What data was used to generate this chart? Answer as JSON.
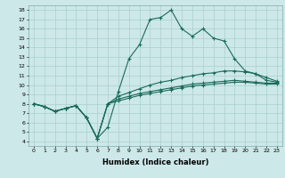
{
  "xlabel": "Humidex (Indice chaleur)",
  "bg_color": "#cde8e8",
  "line_color": "#1a6b5a",
  "grid_color": "#aacfcf",
  "xlim": [
    -0.5,
    23.5
  ],
  "ylim": [
    3.5,
    18.5
  ],
  "xticks": [
    0,
    1,
    2,
    3,
    4,
    5,
    6,
    7,
    8,
    9,
    10,
    11,
    12,
    13,
    14,
    15,
    16,
    17,
    18,
    19,
    20,
    21,
    22,
    23
  ],
  "yticks": [
    4,
    5,
    6,
    7,
    8,
    9,
    10,
    11,
    12,
    13,
    14,
    15,
    16,
    17,
    18
  ],
  "line1_x": [
    0,
    1,
    2,
    3,
    4,
    5,
    6,
    7,
    8,
    9,
    10,
    11,
    12,
    13,
    14,
    15,
    16,
    17,
    18,
    19,
    20,
    21,
    22,
    23
  ],
  "line1_y": [
    8.0,
    7.7,
    7.2,
    7.5,
    7.8,
    6.5,
    4.3,
    5.5,
    9.3,
    12.8,
    14.3,
    17.0,
    17.2,
    18.0,
    16.0,
    15.2,
    16.0,
    15.0,
    14.7,
    12.8,
    11.5,
    11.2,
    10.5,
    10.3
  ],
  "line2_x": [
    0,
    1,
    2,
    3,
    4,
    5,
    6,
    7,
    8,
    9,
    10,
    11,
    12,
    13,
    14,
    15,
    16,
    17,
    18,
    19,
    20,
    21,
    22,
    23
  ],
  "line2_y": [
    8.0,
    7.7,
    7.2,
    7.5,
    7.8,
    6.5,
    4.3,
    8.0,
    8.8,
    9.2,
    9.6,
    10.0,
    10.3,
    10.5,
    10.8,
    11.0,
    11.2,
    11.3,
    11.5,
    11.5,
    11.4,
    11.2,
    10.8,
    10.4
  ],
  "line3_x": [
    0,
    1,
    2,
    3,
    4,
    5,
    6,
    7,
    8,
    9,
    10,
    11,
    12,
    13,
    14,
    15,
    16,
    17,
    18,
    19,
    20,
    21,
    22,
    23
  ],
  "line3_y": [
    8.0,
    7.7,
    7.2,
    7.5,
    7.8,
    6.5,
    4.3,
    8.0,
    8.5,
    8.8,
    9.1,
    9.3,
    9.5,
    9.7,
    9.9,
    10.1,
    10.2,
    10.3,
    10.4,
    10.5,
    10.4,
    10.3,
    10.2,
    10.2
  ],
  "line4_x": [
    0,
    1,
    2,
    3,
    4,
    5,
    6,
    7,
    8,
    9,
    10,
    11,
    12,
    13,
    14,
    15,
    16,
    17,
    18,
    19,
    20,
    21,
    22,
    23
  ],
  "line4_y": [
    8.0,
    7.7,
    7.2,
    7.5,
    7.8,
    6.5,
    4.3,
    8.0,
    8.3,
    8.6,
    8.9,
    9.1,
    9.3,
    9.5,
    9.7,
    9.9,
    10.0,
    10.1,
    10.2,
    10.3,
    10.3,
    10.2,
    10.1,
    10.1
  ],
  "marker": "+",
  "markersize": 3,
  "linewidth": 0.8
}
